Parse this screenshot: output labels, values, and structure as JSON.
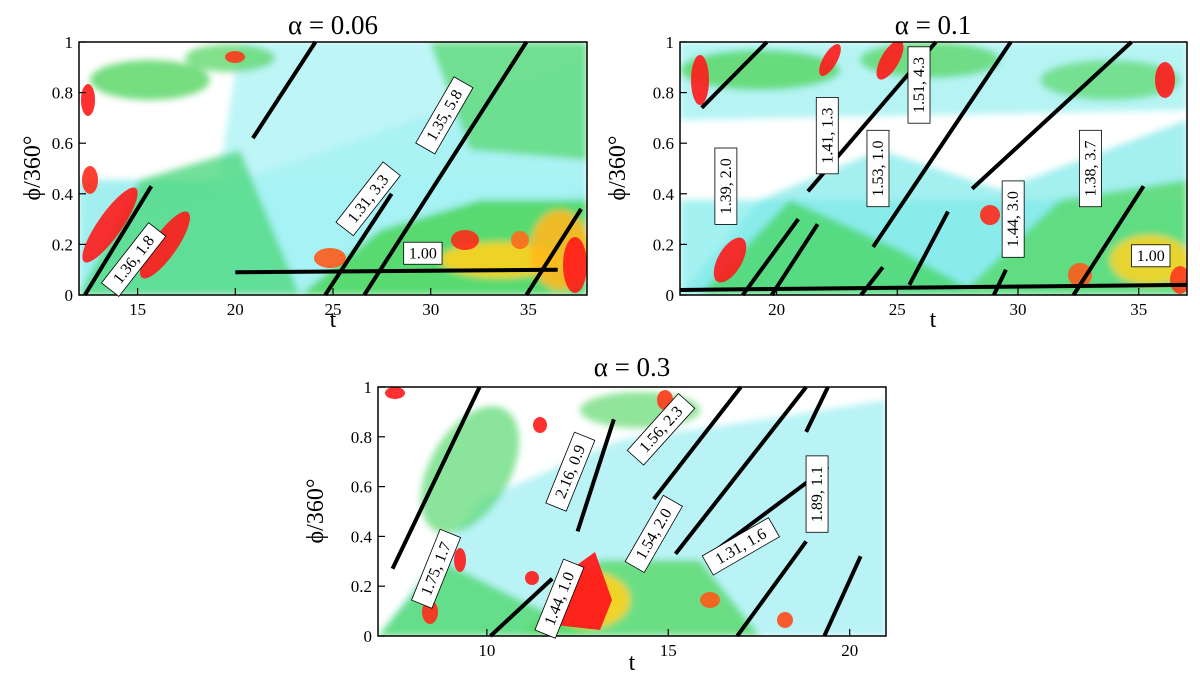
{
  "chart_data": [
    {
      "type": "heatmap",
      "title": "α = 0.06",
      "xlabel": "t",
      "ylabel": "ϕ/360°",
      "xlim": [
        12,
        38
      ],
      "ylim": [
        0,
        1
      ],
      "xticks": [
        "15",
        "20",
        "25",
        "30",
        "35"
      ],
      "yticks": [
        "0",
        "0.2",
        "0.4",
        "0.6",
        "0.8",
        "1"
      ],
      "lines": [
        {
          "x": [
            12.3,
            15.7
          ],
          "y": [
            0.0,
            0.43
          ]
        },
        {
          "x": [
            20.9,
            24.1
          ],
          "y": [
            0.62,
            1.0
          ]
        },
        {
          "x": [
            24.6,
            28.0
          ],
          "y": [
            0.0,
            0.4
          ]
        },
        {
          "x": [
            26.6,
            34.9
          ],
          "y": [
            0.0,
            1.0
          ]
        },
        {
          "x": [
            20.0,
            36.5
          ],
          "y": [
            0.09,
            0.1
          ]
        },
        {
          "x": [
            34.9,
            37.7
          ],
          "y": [
            0.0,
            0.34
          ]
        }
      ],
      "labels": [
        {
          "text": "1.36, 1.8",
          "x": 14.8,
          "y": 0.14,
          "angle": -52
        },
        {
          "text": "1.31, 3.3",
          "x": 26.8,
          "y": 0.38,
          "angle": -52
        },
        {
          "text": "1.35, 5.8",
          "x": 30.7,
          "y": 0.71,
          "angle": -60
        },
        {
          "text": "1.00",
          "x": 29.6,
          "y": 0.165,
          "angle": 0
        }
      ]
    },
    {
      "type": "heatmap",
      "title": "α = 0.1",
      "xlabel": "t",
      "ylabel": "ϕ/360°",
      "xlim": [
        16,
        37
      ],
      "ylim": [
        0,
        1
      ],
      "xticks": [
        "20",
        "25",
        "30",
        "35"
      ],
      "yticks": [
        "0",
        "0.2",
        "0.4",
        "0.6",
        "0.8",
        "1"
      ],
      "lines": [
        {
          "x": [
            16.9,
            19.6
          ],
          "y": [
            0.74,
            1.0
          ]
        },
        {
          "x": [
            18.6,
            20.9
          ],
          "y": [
            0.0,
            0.3
          ]
        },
        {
          "x": [
            19.8,
            21.7
          ],
          "y": [
            0.0,
            0.28
          ]
        },
        {
          "x": [
            21.3,
            26.6
          ],
          "y": [
            0.41,
            1.0
          ]
        },
        {
          "x": [
            24.0,
            29.7
          ],
          "y": [
            0.19,
            1.0
          ]
        },
        {
          "x": [
            23.5,
            24.4
          ],
          "y": [
            0.0,
            0.11
          ]
        },
        {
          "x": [
            25.5,
            27.1
          ],
          "y": [
            0.04,
            0.33
          ]
        },
        {
          "x": [
            28.1,
            34.7
          ],
          "y": [
            0.42,
            1.0
          ]
        },
        {
          "x": [
            29.0,
            29.5
          ],
          "y": [
            0.0,
            0.1
          ]
        },
        {
          "x": [
            32.3,
            35.2
          ],
          "y": [
            0.0,
            0.43
          ]
        },
        {
          "x": [
            16.0,
            37.0
          ],
          "y": [
            0.02,
            0.04
          ]
        }
      ],
      "labels": [
        {
          "text": "1.39, 2.0",
          "x": 17.9,
          "y": 0.43,
          "angle": -90
        },
        {
          "text": "1.41, 1.3",
          "x": 22.1,
          "y": 0.63,
          "angle": -90
        },
        {
          "text": "1.53, 1.0",
          "x": 24.2,
          "y": 0.5,
          "angle": -90
        },
        {
          "text": "1.51, 4.3",
          "x": 25.9,
          "y": 0.83,
          "angle": -90
        },
        {
          "text": "1.44, 3.0",
          "x": 29.8,
          "y": 0.3,
          "angle": -90
        },
        {
          "text": "1.38, 3.7",
          "x": 33.0,
          "y": 0.5,
          "angle": -90
        },
        {
          "text": "1.00",
          "x": 35.5,
          "y": 0.155,
          "angle": 0
        }
      ]
    },
    {
      "type": "heatmap",
      "title": "α = 0.3",
      "xlabel": "t",
      "ylabel": "ϕ/360°",
      "xlim": [
        7,
        21
      ],
      "ylim": [
        0,
        1
      ],
      "xticks": [
        "10",
        "15",
        "20"
      ],
      "yticks": [
        "0",
        "0.2",
        "0.4",
        "0.6",
        "0.8",
        "1"
      ],
      "lines": [
        {
          "x": [
            7.4,
            9.8
          ],
          "y": [
            0.27,
            1.0
          ]
        },
        {
          "x": [
            10.1,
            11.8
          ],
          "y": [
            0.0,
            0.23
          ]
        },
        {
          "x": [
            12.5,
            13.5
          ],
          "y": [
            0.42,
            0.87
          ]
        },
        {
          "x": [
            14.6,
            17.0
          ],
          "y": [
            0.55,
            1.0
          ]
        },
        {
          "x": [
            15.2,
            18.8
          ],
          "y": [
            0.33,
            1.0
          ]
        },
        {
          "x": [
            18.8,
            19.4
          ],
          "y": [
            0.82,
            1.0
          ]
        },
        {
          "x": [
            16.0,
            19.4
          ],
          "y": [
            0.31,
            0.68
          ]
        },
        {
          "x": [
            16.9,
            18.8
          ],
          "y": [
            0.0,
            0.38
          ]
        },
        {
          "x": [
            19.3,
            20.3
          ],
          "y": [
            0.0,
            0.32
          ]
        }
      ],
      "labels": [
        {
          "text": "1.75, 1.7",
          "x": 8.6,
          "y": 0.27,
          "angle": -68
        },
        {
          "text": "1.44, 1.0",
          "x": 12.0,
          "y": 0.15,
          "angle": -68
        },
        {
          "text": "2.16, 0.9",
          "x": 12.3,
          "y": 0.66,
          "angle": -68
        },
        {
          "text": "1.56, 2.3",
          "x": 14.8,
          "y": 0.83,
          "angle": -48
        },
        {
          "text": "1.54, 2.0",
          "x": 14.6,
          "y": 0.41,
          "angle": -60
        },
        {
          "text": "1.31, 1.6",
          "x": 17.0,
          "y": 0.36,
          "angle": -30
        },
        {
          "text": "1.89, 1.1",
          "x": 19.1,
          "y": 0.57,
          "angle": -90
        }
      ]
    }
  ],
  "colors": {
    "background_low": "#ffffff",
    "low": "#a8f0f4",
    "mid_low": "#3ecfcf",
    "mid": "#40d24a",
    "mid_high": "#ffd21e",
    "high": "#ff1a1a",
    "line": "#000000"
  }
}
